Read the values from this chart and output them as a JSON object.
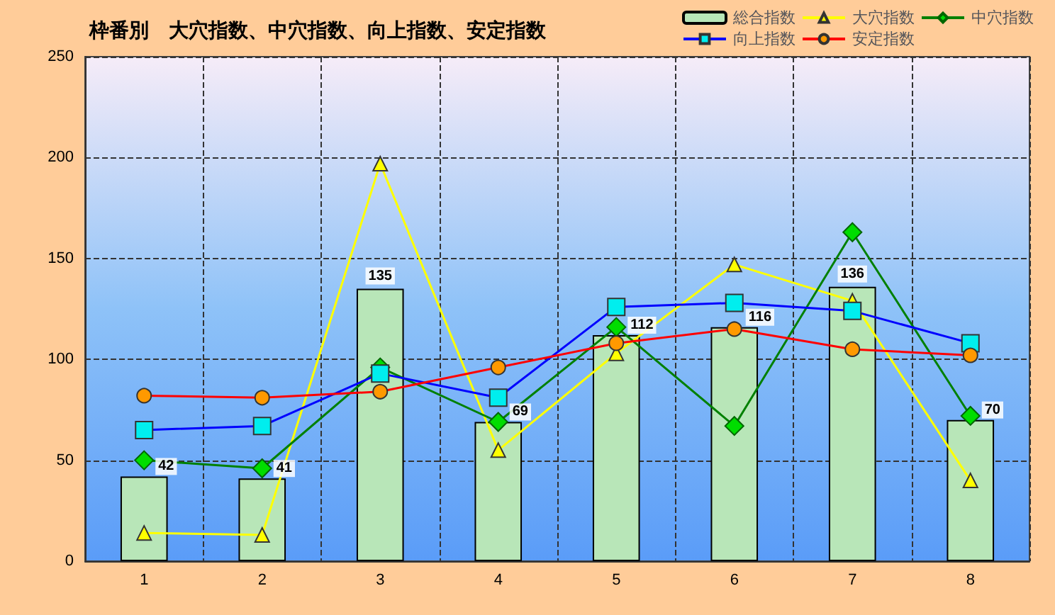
{
  "chart_data": {
    "type": "bar",
    "title": "枠番別　大穴指数、中穴指数、向上指数、安定指数",
    "categories": [
      "1",
      "2",
      "3",
      "4",
      "5",
      "6",
      "7",
      "8"
    ],
    "series": [
      {
        "name": "総合指数",
        "color": "#b8e6b8",
        "values": [
          42,
          41,
          135,
          69,
          112,
          116,
          136,
          70
        ],
        "value_labels": [
          "42",
          "41",
          "135",
          "69",
          "112",
          "116",
          "136",
          "70"
        ]
      },
      {
        "name": "大穴指数",
        "type": "line",
        "color": "#ffff00",
        "marker": "triangle",
        "values": [
          14,
          13,
          197,
          55,
          103,
          147,
          129,
          40
        ]
      },
      {
        "name": "中穴指数",
        "type": "line",
        "color": "#008000",
        "marker": "diamond",
        "values": [
          50,
          46,
          96,
          69,
          116,
          67,
          163,
          72
        ]
      },
      {
        "name": "向上指数",
        "type": "line",
        "color": "#0000ff",
        "marker": "square",
        "values": [
          65,
          67,
          93,
          81,
          126,
          128,
          124,
          108
        ]
      },
      {
        "name": "安定指数",
        "type": "line",
        "color": "#ff0000",
        "marker": "circle",
        "values": [
          82,
          81,
          84,
          96,
          108,
          115,
          105,
          102
        ]
      }
    ],
    "ylim": [
      0,
      250
    ],
    "yticks": [
      0,
      50,
      100,
      150,
      200,
      250
    ],
    "grid": true,
    "legend": "top right"
  }
}
